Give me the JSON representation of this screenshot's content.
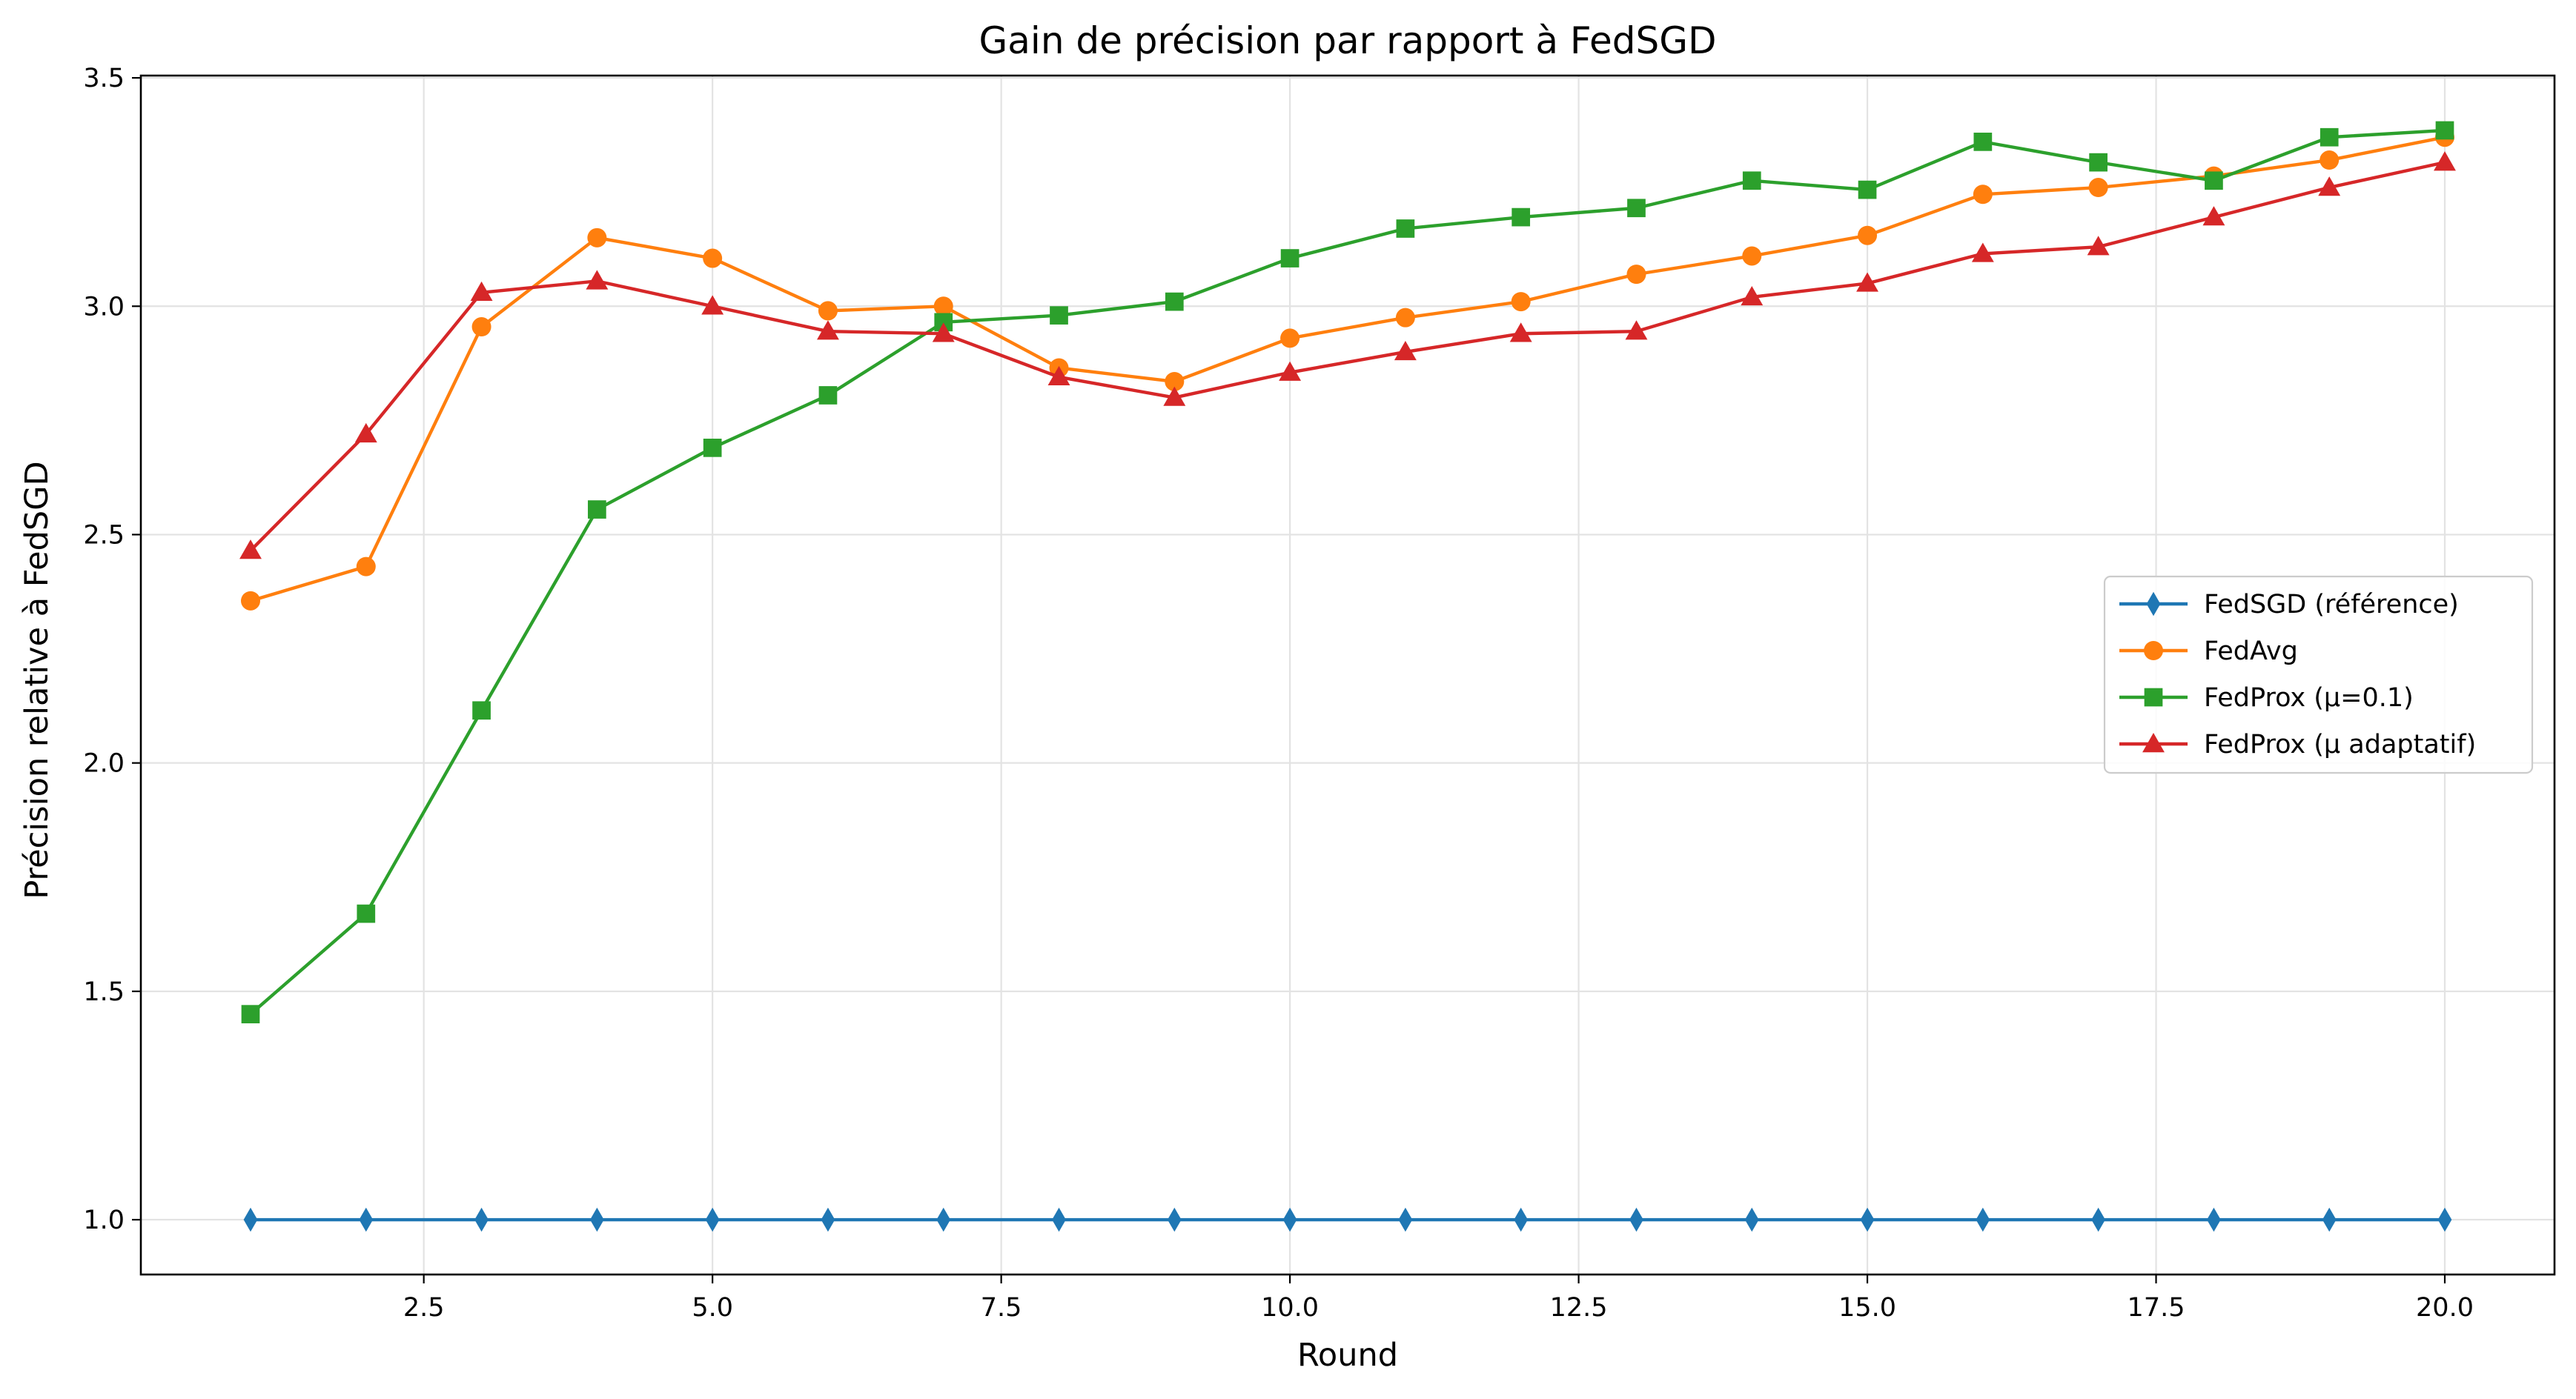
{
  "chart_data": {
    "type": "line",
    "title": "Gain de précision par rapport à FedSGD",
    "xlabel": "Round",
    "ylabel": "Précision relative à FedSGD",
    "xlim": [
      0.05,
      20.95
    ],
    "ylim": [
      0.88,
      3.505
    ],
    "xticks": [
      2.5,
      5.0,
      7.5,
      10.0,
      12.5,
      15.0,
      17.5,
      20.0
    ],
    "xtick_labels": [
      "2.5",
      "5.0",
      "7.5",
      "10.0",
      "12.5",
      "15.0",
      "17.5",
      "20.0"
    ],
    "yticks": [
      1.0,
      1.5,
      2.0,
      2.5,
      3.0,
      3.5
    ],
    "ytick_labels": [
      "1.0",
      "1.5",
      "2.0",
      "2.5",
      "3.0",
      "3.5"
    ],
    "grid": true,
    "legend_position": "center-right",
    "x": [
      1,
      2,
      3,
      4,
      5,
      6,
      7,
      8,
      9,
      10,
      11,
      12,
      13,
      14,
      15,
      16,
      17,
      18,
      19,
      20
    ],
    "series": [
      {
        "name": "FedSGD (référence)",
        "color": "#1f77b4",
        "marker": "diamond",
        "values": [
          1.0,
          1.0,
          1.0,
          1.0,
          1.0,
          1.0,
          1.0,
          1.0,
          1.0,
          1.0,
          1.0,
          1.0,
          1.0,
          1.0,
          1.0,
          1.0,
          1.0,
          1.0,
          1.0,
          1.0
        ]
      },
      {
        "name": "FedAvg",
        "color": "#ff7f0e",
        "marker": "circle",
        "values": [
          2.355,
          2.43,
          2.955,
          3.15,
          3.105,
          2.99,
          3.0,
          2.865,
          2.835,
          2.93,
          2.975,
          3.01,
          3.07,
          3.11,
          3.155,
          3.245,
          3.26,
          3.285,
          3.32,
          3.37
        ]
      },
      {
        "name": "FedProx (μ=0.1)",
        "color": "#2ca02c",
        "marker": "square",
        "values": [
          1.45,
          1.67,
          2.115,
          2.555,
          2.69,
          2.805,
          2.965,
          2.98,
          3.01,
          3.105,
          3.17,
          3.195,
          3.215,
          3.275,
          3.255,
          3.36,
          3.315,
          3.275,
          3.37,
          3.385
        ]
      },
      {
        "name": "FedProx (μ adaptatif)",
        "color": "#d62728",
        "marker": "triangle",
        "values": [
          2.465,
          2.72,
          3.03,
          3.055,
          3.0,
          2.945,
          2.94,
          2.845,
          2.8,
          2.855,
          2.9,
          2.94,
          2.945,
          3.02,
          3.05,
          3.115,
          3.13,
          3.195,
          3.26,
          3.315
        ]
      }
    ]
  }
}
